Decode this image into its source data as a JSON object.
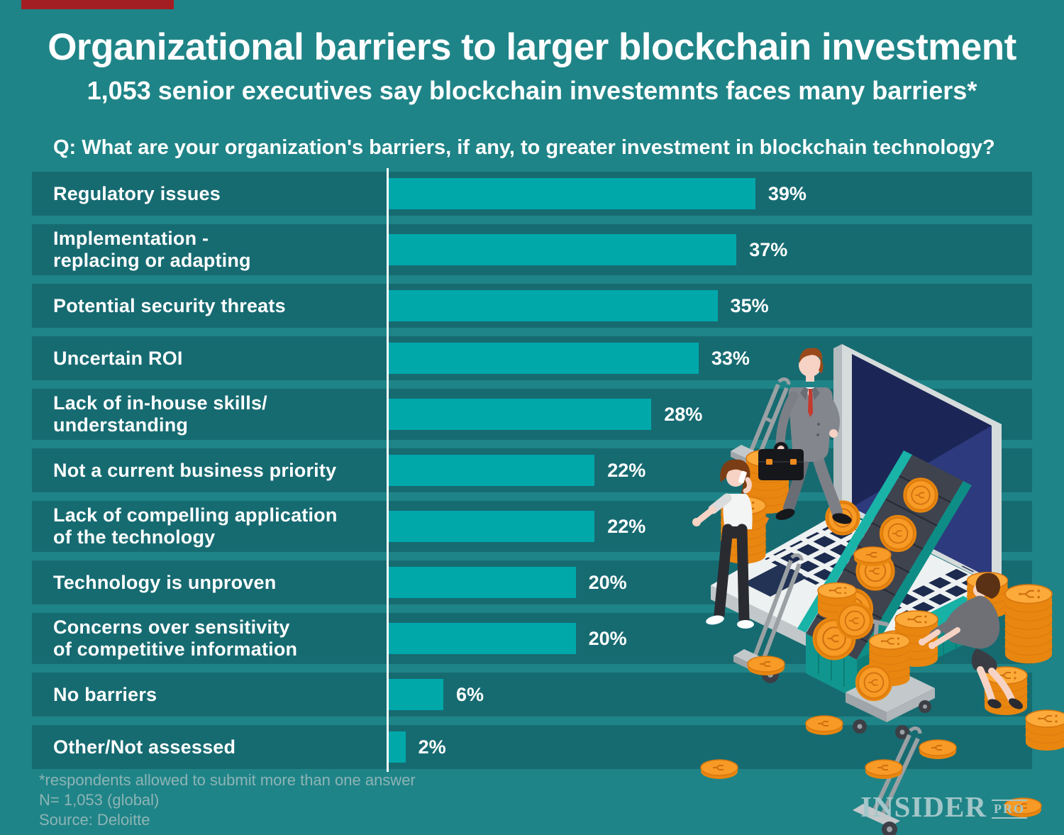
{
  "page": {
    "title": "Organizational barriers to larger blockchain investment",
    "subtitle": "1,053 senior executives say blockchain investemnts faces many barriers*",
    "question": "Q: What are your organization's barriers, if any, to greater investment in blockchain technology?"
  },
  "chart_data": {
    "type": "bar",
    "orientation": "horizontal",
    "title": "Organizational barriers to larger blockchain investment",
    "subtitle": "1,053 senior executives say blockchain investemnts faces many barriers*",
    "question": "Q: What are your organization's barriers, if any, to greater investment in blockchain technology?",
    "unit": "%",
    "xlim": [
      0,
      100
    ],
    "bar_color": "#00a8aa",
    "legend": "none",
    "grid": "off",
    "categories": [
      "Regulatory issues",
      "Implementation - replacing or adapting",
      "Potential security threats",
      "Uncertain ROI",
      "Lack of in-house skills/ understanding",
      "Not a current business priority",
      "Lack of compelling application of the technology",
      "Technology is unproven",
      "Concerns over sensitivity of competitive information",
      "No barriers",
      "Other/Not assessed"
    ],
    "values": [
      39,
      37,
      35,
      33,
      28,
      22,
      22,
      20,
      20,
      6,
      2
    ],
    "rows": [
      {
        "line1": "Regulatory issues",
        "value": 39,
        "pct": "39%"
      },
      {
        "line1": "Implementation -",
        "line2": "replacing or adapting",
        "value": 37,
        "pct": "37%"
      },
      {
        "line1": "Potential security threats",
        "value": 35,
        "pct": "35%"
      },
      {
        "line1": "Uncertain ROI",
        "value": 33,
        "pct": "33%"
      },
      {
        "line1": "Lack of in-house skills/",
        "line2": "understanding",
        "value": 28,
        "pct": "28%"
      },
      {
        "line1": "Not a current business priority",
        "value": 22,
        "pct": "22%"
      },
      {
        "line1": "Lack of compelling application",
        "line2": "of the technology",
        "value": 22,
        "pct": "22%"
      },
      {
        "line1": "Technology is unproven",
        "value": 20,
        "pct": "20%"
      },
      {
        "line1": "Concerns over sensitivity",
        "line2": "of competitive information",
        "value": 20,
        "pct": "20%"
      },
      {
        "line1": "No barriers",
        "value": 6,
        "pct": "6%"
      },
      {
        "line1": "Other/Not assessed",
        "value": 2,
        "pct": "2%"
      }
    ]
  },
  "footnotes": [
    "*respondents allowed to submit more than one answer",
    "N= 1,053 (global)",
    "Source: Deloitte"
  ],
  "logo": {
    "word": "INSIDER",
    "suffix": "PRO"
  },
  "colors": {
    "background": "#1f8487",
    "row_band": "#166b71",
    "bar": "#00a8aa",
    "accent_bar": "#a31e22",
    "footnote_text": "#8db4b6",
    "logo_text": "#a2c6c9",
    "coin_orange": "#f79b26"
  },
  "illustration": {
    "elements": [
      "laptop",
      "conveyor-belt-of-coins",
      "businessman-with-briefcase",
      "woman-on-phone",
      "kneeling-woman",
      "hand-trucks",
      "platform-cart",
      "coin-stacks"
    ]
  }
}
